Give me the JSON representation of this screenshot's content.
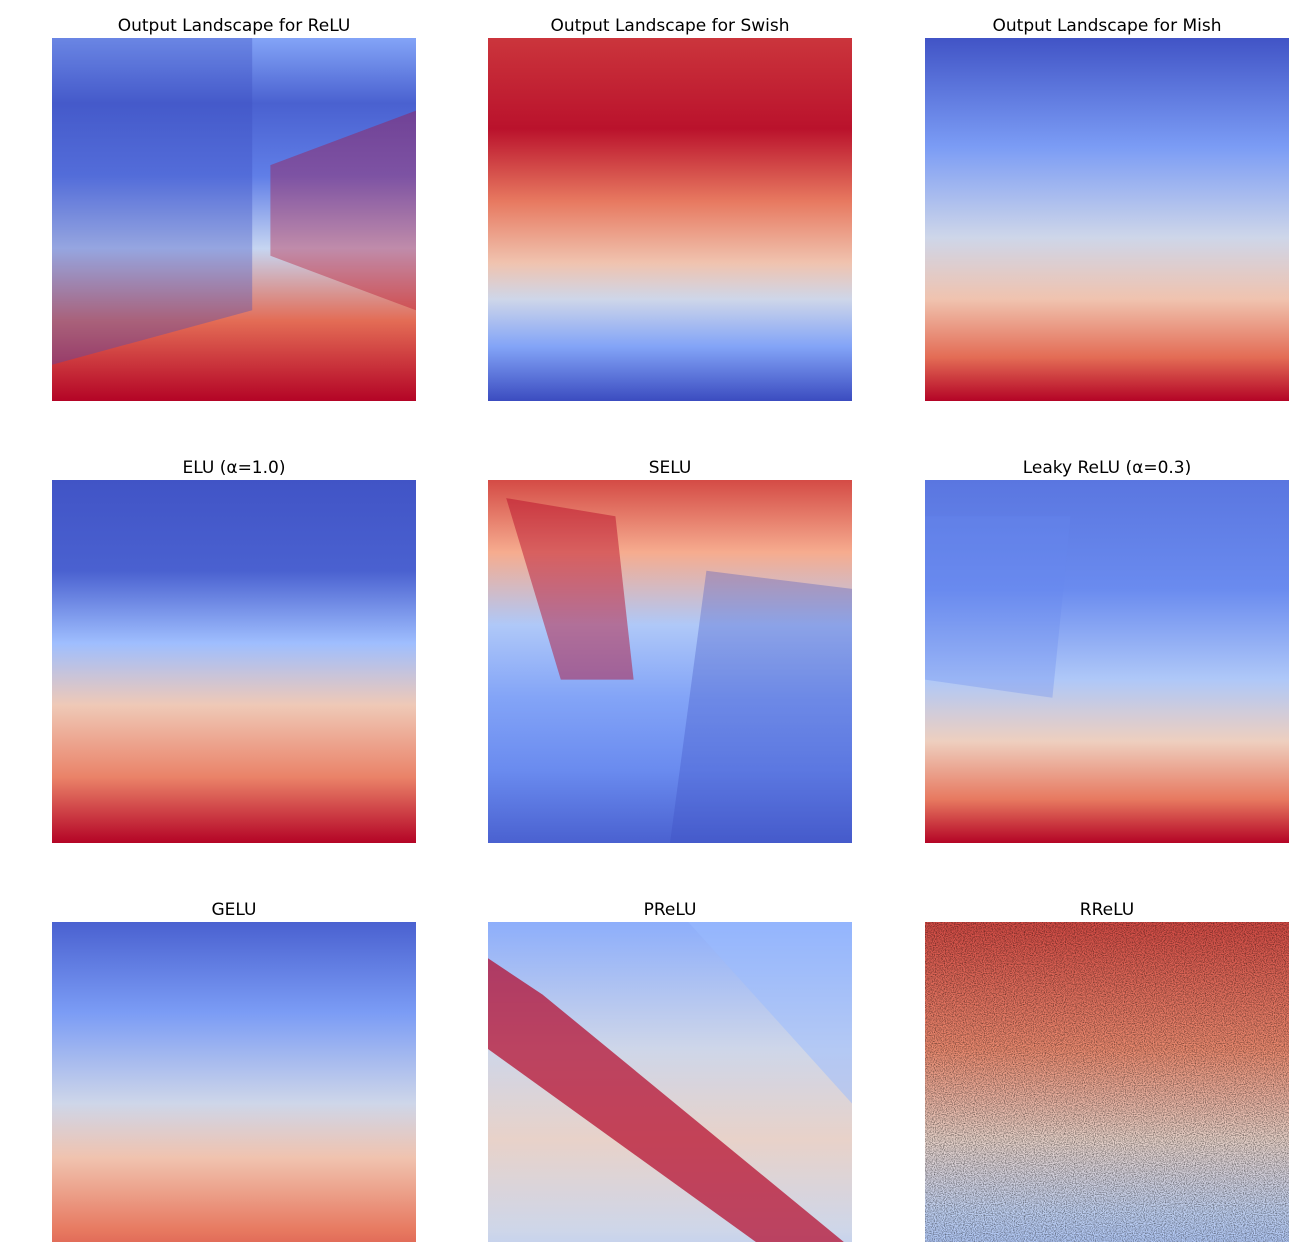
{
  "figure": {
    "panel_count": 9,
    "grid": "3x3",
    "colormap": "coolwarm",
    "colormap_stops": [
      "#3b4cc0",
      "#6788ee",
      "#9abbff",
      "#c9d7f0",
      "#edd1c2",
      "#f7a889",
      "#e26952",
      "#b40426"
    ]
  },
  "chart_data": [
    {
      "type": "heatmap",
      "title": "Output Landscape for ReLU",
      "axes_visible": false,
      "pattern": "relu"
    },
    {
      "type": "heatmap",
      "title": "Output Landscape for Swish",
      "axes_visible": false,
      "pattern": "swish"
    },
    {
      "type": "heatmap",
      "title": "Output Landscape for Mish",
      "axes_visible": false,
      "pattern": "mish"
    },
    {
      "type": "heatmap",
      "title": "ELU (α=1.0)",
      "axes_visible": false,
      "pattern": "elu"
    },
    {
      "type": "heatmap",
      "title": "SELU",
      "axes_visible": false,
      "pattern": "selu"
    },
    {
      "type": "heatmap",
      "title": "Leaky ReLU (α=0.3)",
      "axes_visible": false,
      "pattern": "leaky"
    },
    {
      "type": "heatmap",
      "title": "GELU",
      "axes_visible": false,
      "pattern": "gelu"
    },
    {
      "type": "heatmap",
      "title": "PReLU",
      "axes_visible": false,
      "pattern": "prelu"
    },
    {
      "type": "heatmap",
      "title": "RReLU",
      "axes_visible": false,
      "pattern": "rrelu"
    }
  ]
}
